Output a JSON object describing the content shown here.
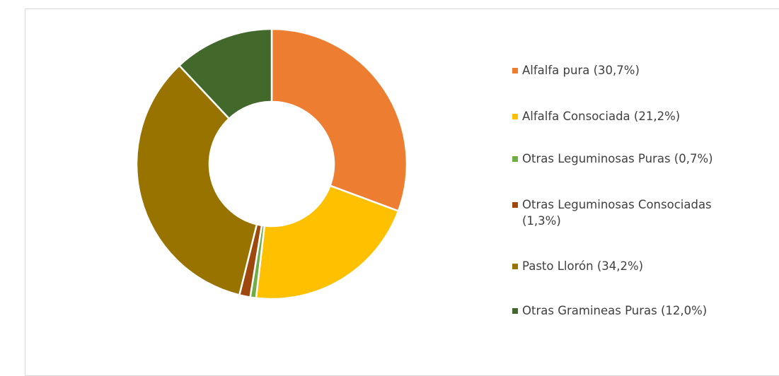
{
  "chart_data": {
    "type": "donut",
    "categories": [
      "Alfalfa pura (30,7%)",
      "Alfalfa Consociada (21,2%)",
      "Otras Leguminosas Puras (0,7%)",
      "Otras Leguminosas Consociadas (1,3%)",
      "Pasto Llorón (34,2%)",
      "Otras Gramineas Puras (12,0%)"
    ],
    "values": [
      30.7,
      21.2,
      0.7,
      1.3,
      34.2,
      12.0
    ],
    "colors": [
      "#ed7d31",
      "#ffc000",
      "#70ad47",
      "#9e480e",
      "#997300",
      "#43682b"
    ],
    "legend": "right"
  }
}
